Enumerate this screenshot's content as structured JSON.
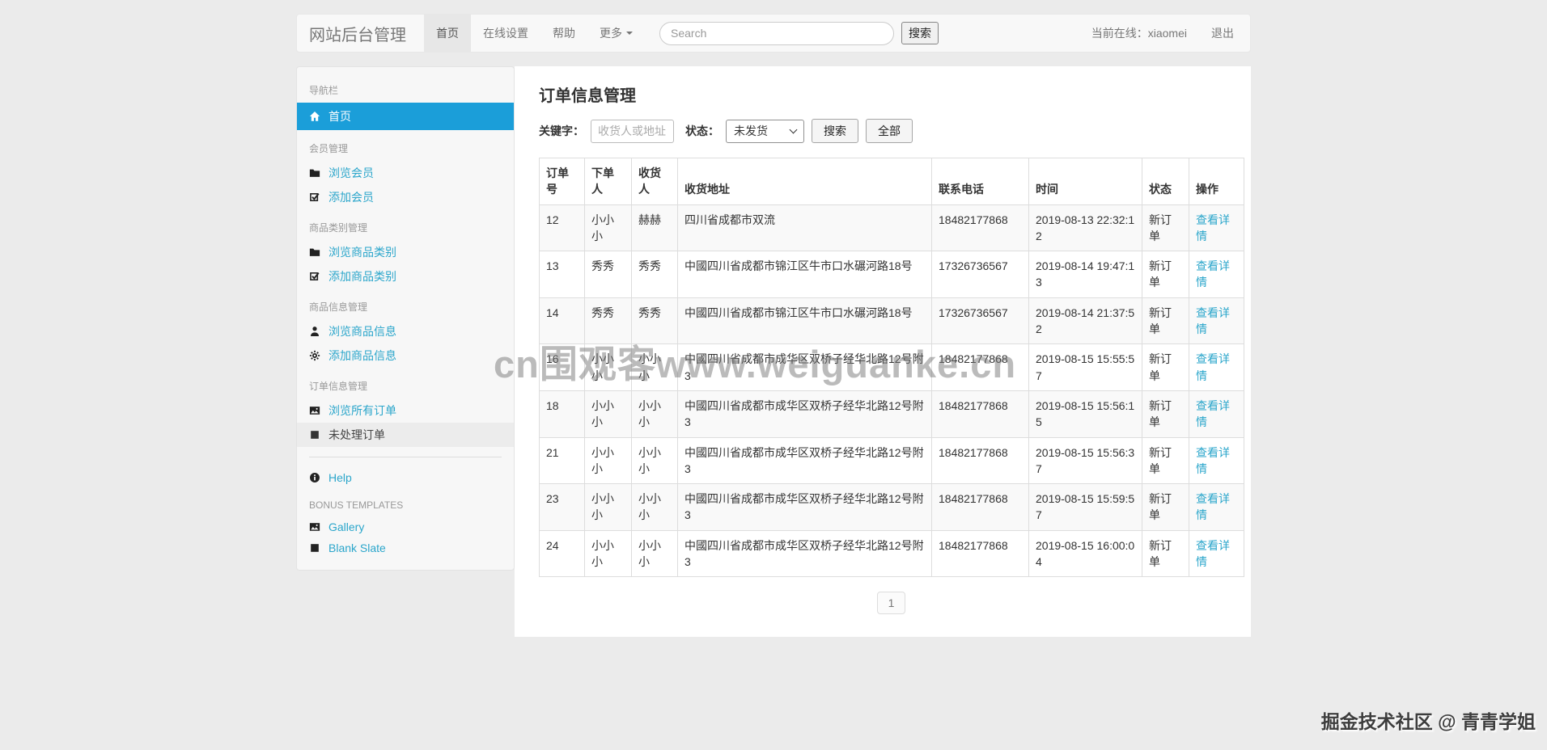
{
  "navbar": {
    "brand": "网站后台管理",
    "items": [
      {
        "label": "首页",
        "active": true
      },
      {
        "label": "在线设置",
        "active": false
      },
      {
        "label": "帮助",
        "active": false
      },
      {
        "label": "更多",
        "active": false,
        "caret_icon": "caret-down-icon"
      }
    ],
    "search_placeholder": "Search",
    "search_button": "搜索",
    "online_text": "当前在线：xiaomei",
    "logout": "退出"
  },
  "sidebar": {
    "items": [
      {
        "type": "header",
        "label": "导航栏"
      },
      {
        "type": "link",
        "icon": "home-icon",
        "label": "首页",
        "state": "active"
      },
      {
        "type": "header",
        "label": "会员管理"
      },
      {
        "type": "link",
        "icon": "folder-icon",
        "label": "浏览会员"
      },
      {
        "type": "link",
        "icon": "check-square-icon",
        "label": "添加会员"
      },
      {
        "type": "header",
        "label": "商品类别管理"
      },
      {
        "type": "link",
        "icon": "folder-icon",
        "label": "浏览商品类别"
      },
      {
        "type": "link",
        "icon": "check-square-icon",
        "label": "添加商品类别"
      },
      {
        "type": "header",
        "label": "商品信息管理"
      },
      {
        "type": "link",
        "icon": "person-icon",
        "label": "浏览商品信息"
      },
      {
        "type": "link",
        "icon": "gear-icon",
        "label": "添加商品信息"
      },
      {
        "type": "header",
        "label": "订单信息管理"
      },
      {
        "type": "link",
        "icon": "image-icon",
        "label": "浏览所有订单"
      },
      {
        "type": "link",
        "icon": "square-icon",
        "label": "未处理订单",
        "state": "current"
      },
      {
        "type": "divider"
      },
      {
        "type": "link",
        "icon": "info-icon",
        "label": "Help"
      },
      {
        "type": "header",
        "label": "BONUS TEMPLATES"
      },
      {
        "type": "link",
        "icon": "image-icon",
        "label": "Gallery"
      },
      {
        "type": "link",
        "icon": "square-icon",
        "label": "Blank Slate"
      }
    ]
  },
  "main": {
    "title": "订单信息管理",
    "filters": {
      "keyword_label": "关键字：",
      "keyword_placeholder": "收货人或地址",
      "status_label": "状态：",
      "status_value": "未发货",
      "status_icon": "chevron-down-icon",
      "search_button": "搜索",
      "all_button": "全部"
    },
    "table": {
      "columns": [
        "订单号",
        "下单人",
        "收货人",
        "收货地址",
        "联系电话",
        "时间",
        "状态",
        "操作"
      ],
      "action_label": "查看详情",
      "rows": [
        {
          "id": "12",
          "buyer": "小小小",
          "receiver": "赫赫",
          "address": "四川省成都市双流",
          "phone": "18482177868",
          "time": "2019-08-13 22:32:12",
          "status": "新订单"
        },
        {
          "id": "13",
          "buyer": "秀秀",
          "receiver": "秀秀",
          "address": "中國四川省成都市锦江区牛市口水碾河路18号",
          "phone": "17326736567",
          "time": "2019-08-14 19:47:13",
          "status": "新订单"
        },
        {
          "id": "14",
          "buyer": "秀秀",
          "receiver": "秀秀",
          "address": "中國四川省成都市锦江区牛市口水碾河路18号",
          "phone": "17326736567",
          "time": "2019-08-14 21:37:52",
          "status": "新订单"
        },
        {
          "id": "16",
          "buyer": "小小小",
          "receiver": "小小小",
          "address": "中國四川省成都市成华区双桥子经华北路12号附3",
          "phone": "18482177868",
          "time": "2019-08-15 15:55:57",
          "status": "新订单"
        },
        {
          "id": "18",
          "buyer": "小小小",
          "receiver": "小小小",
          "address": "中國四川省成都市成华区双桥子经华北路12号附3",
          "phone": "18482177868",
          "time": "2019-08-15 15:56:15",
          "status": "新订单"
        },
        {
          "id": "21",
          "buyer": "小小小",
          "receiver": "小小小",
          "address": "中國四川省成都市成华区双桥子经华北路12号附3",
          "phone": "18482177868",
          "time": "2019-08-15 15:56:37",
          "status": "新订单"
        },
        {
          "id": "23",
          "buyer": "小小小",
          "receiver": "小小小",
          "address": "中國四川省成都市成华区双桥子经华北路12号附3",
          "phone": "18482177868",
          "time": "2019-08-15 15:59:57",
          "status": "新订单"
        },
        {
          "id": "24",
          "buyer": "小小小",
          "receiver": "小小小",
          "address": "中國四川省成都市成华区双桥子经华北路12号附3",
          "phone": "18482177868",
          "time": "2019-08-15 16:00:04",
          "status": "新订单"
        }
      ]
    },
    "pagination": "1"
  },
  "watermarks": {
    "center": "cn围观客www.weiguanke.cn",
    "corner": "掘金技术社区 @ 青青学姐"
  },
  "colors": {
    "accent_blue": "#1b9ed9",
    "link_teal": "#2ba6cb",
    "navbar_bg": "#f8f8f8",
    "page_bg": "#ebebeb"
  }
}
